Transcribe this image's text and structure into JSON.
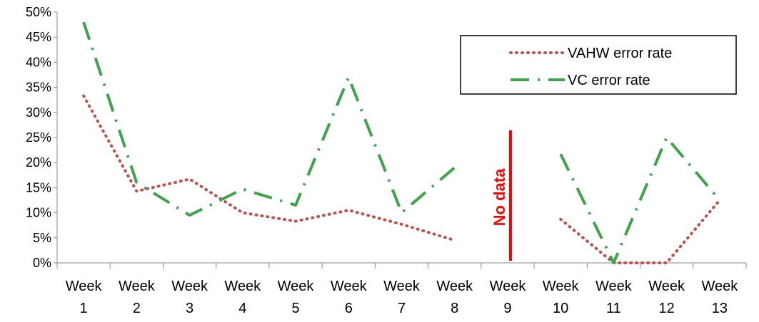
{
  "chart_data": {
    "type": "line",
    "title": "",
    "xlabel": "",
    "ylabel": "",
    "ylim": [
      0,
      50
    ],
    "y_ticks": [
      "0%",
      "5%",
      "10%",
      "15%",
      "20%",
      "25%",
      "30%",
      "35%",
      "40%",
      "45%",
      "50%"
    ],
    "categories": [
      {
        "top": "Week",
        "bottom": "1"
      },
      {
        "top": "Week",
        "bottom": "2"
      },
      {
        "top": "Week",
        "bottom": "3"
      },
      {
        "top": "Week",
        "bottom": "4"
      },
      {
        "top": "Week",
        "bottom": "5"
      },
      {
        "top": "Week",
        "bottom": "6"
      },
      {
        "top": "Week",
        "bottom": "7"
      },
      {
        "top": "Week",
        "bottom": "8"
      },
      {
        "top": "Week",
        "bottom": "9"
      },
      {
        "top": "Week",
        "bottom": "10"
      },
      {
        "top": "Week",
        "bottom": "11"
      },
      {
        "top": "Week",
        "bottom": "12"
      },
      {
        "top": "Week",
        "bottom": "13"
      }
    ],
    "series": [
      {
        "name": "VAHW error rate",
        "color": "#c0504d",
        "style": "dotted",
        "values": [
          33.3,
          14.3,
          16.7,
          10.0,
          8.3,
          10.5,
          7.7,
          4.5,
          null,
          8.7,
          0,
          0,
          12.5
        ]
      },
      {
        "name": "VC error rate",
        "color": "#3ea34a",
        "style": "dash-dot",
        "values": [
          48.0,
          16.0,
          9.5,
          14.7,
          11.5,
          37.0,
          10.0,
          19.0,
          null,
          21.7,
          0,
          25.0,
          12.5
        ]
      }
    ],
    "annotation": {
      "text": "No data",
      "color": "#ff0000",
      "at_category": 8
    },
    "legend_position": "top-right",
    "grid": false
  }
}
